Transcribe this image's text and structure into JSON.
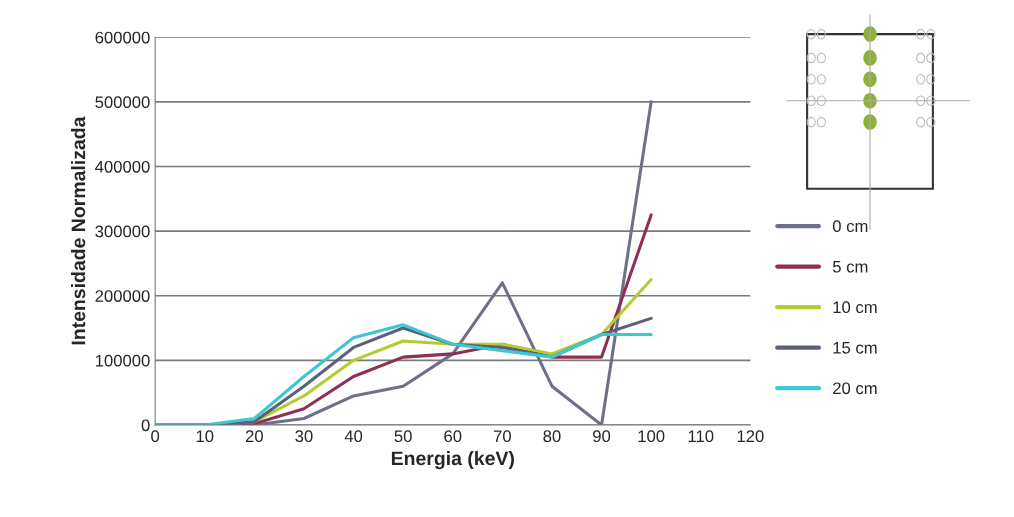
{
  "chart_data": {
    "type": "line",
    "xlabel": "Energia (keV)",
    "ylabel": "Intensidade Normalizada",
    "x": [
      0,
      10,
      20,
      30,
      40,
      50,
      60,
      70,
      80,
      90,
      100
    ],
    "series": [
      {
        "name": "0 cm",
        "color": "#6e7088",
        "values": [
          0,
          0,
          0,
          10000,
          45000,
          60000,
          110000,
          220000,
          60000,
          0,
          500000
        ]
      },
      {
        "name": "5 cm",
        "color": "#8e2f55",
        "values": [
          0,
          0,
          2000,
          25000,
          75000,
          105000,
          110000,
          125000,
          105000,
          105000,
          325000
        ]
      },
      {
        "name": "10 cm",
        "color": "#b4cc30",
        "values": [
          0,
          0,
          5000,
          45000,
          100000,
          130000,
          125000,
          125000,
          110000,
          140000,
          225000
        ]
      },
      {
        "name": "15 cm",
        "color": "#5c6078",
        "values": [
          0,
          0,
          5000,
          60000,
          120000,
          150000,
          125000,
          120000,
          105000,
          140000,
          165000
        ]
      },
      {
        "name": "20 cm",
        "color": "#3cc8d2",
        "values": [
          0,
          0,
          10000,
          75000,
          135000,
          155000,
          125000,
          115000,
          105000,
          140000,
          140000
        ]
      }
    ],
    "xlim": [
      0,
      120
    ],
    "xticks": [
      0,
      10,
      20,
      30,
      40,
      50,
      60,
      70,
      80,
      90,
      100,
      110,
      120
    ],
    "ylim": [
      0,
      600000
    ],
    "yticks": [
      0,
      100000,
      200000,
      300000,
      400000,
      500000,
      600000
    ],
    "grid": "y",
    "legend": "right",
    "marker": "none",
    "line_style": "solid"
  }
}
